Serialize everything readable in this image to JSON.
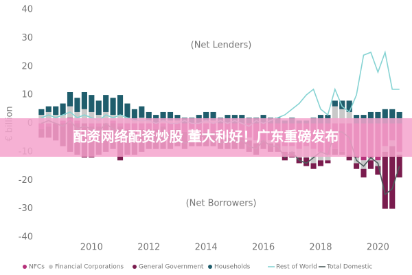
{
  "chart_data": {
    "type": "stacked-bar-line",
    "y_label": "€ billion",
    "annotations": [
      "(Net Lenders)",
      "(Net Borrowers)"
    ],
    "banner": "配资网络配资炒股 董大利好！广东重磅发布",
    "x": [
      2008.25,
      2008.5,
      2008.75,
      2009,
      2009.25,
      2009.5,
      2009.75,
      2010,
      2010.25,
      2010.5,
      2010.75,
      2011,
      2011.25,
      2011.5,
      2011.75,
      2012,
      2012.25,
      2012.5,
      2012.75,
      2013,
      2013.25,
      2013.5,
      2013.75,
      2014,
      2014.25,
      2014.5,
      2014.75,
      2015,
      2015.25,
      2015.5,
      2015.75,
      2016,
      2016.25,
      2016.5,
      2016.75,
      2017,
      2017.25,
      2017.5,
      2017.75,
      2018,
      2018.25,
      2018.5,
      2018.75,
      2019,
      2019.25,
      2019.5,
      2019.75,
      2020,
      2020.25,
      2020.5,
      2020.75
    ],
    "xlim": [
      2008.05,
      2020.95
    ],
    "xticks": [
      2010,
      2012,
      2014,
      2016,
      2018,
      2020
    ],
    "ylim": [
      -40,
      40
    ],
    "yticks": [
      -40,
      -30,
      -20,
      -10,
      0,
      10,
      20,
      30,
      40
    ],
    "series": [
      {
        "name": "NFCs",
        "kind": "bar",
        "color": "#b5317a",
        "values": [
          -2,
          -1,
          0,
          1,
          2,
          1,
          0,
          -1,
          -1,
          0,
          1,
          -1,
          -2,
          -3,
          -2,
          -2,
          -2,
          -1,
          -3,
          -2,
          -3,
          -2,
          -3,
          -3,
          -3,
          -4,
          -4,
          -4,
          -5,
          -5,
          -6,
          -6,
          -6,
          -7,
          -8,
          -8,
          -9,
          -8,
          -9,
          -10,
          -11,
          -9,
          -10,
          -11,
          -12,
          -13,
          -12,
          -13,
          -8,
          -6,
          -10
        ]
      },
      {
        "name": "Financial Corporations",
        "kind": "bar",
        "color": "#c9c9c9",
        "values": [
          3,
          4,
          3,
          2,
          4,
          3,
          5,
          4,
          3,
          4,
          2,
          3,
          2,
          1,
          2,
          1,
          0,
          1,
          1,
          1,
          0,
          -1,
          0,
          1,
          1,
          0,
          -1,
          0,
          0,
          -1,
          -1,
          0,
          -1,
          0,
          -2,
          -2,
          -3,
          -4,
          -5,
          -3,
          -2,
          6,
          5,
          4,
          -2,
          -3,
          -1,
          -2,
          -2,
          -2,
          -1
        ]
      },
      {
        "name": "General Government",
        "kind": "bar",
        "color": "#7a1c4e",
        "values": [
          -3,
          -4,
          -6,
          -8,
          -10,
          -11,
          -12,
          -11,
          -10,
          -10,
          -9,
          -12,
          -9,
          -8,
          -8,
          -7,
          -7,
          -8,
          -6,
          -6,
          -6,
          -5,
          -5,
          -5,
          -5,
          -5,
          -4,
          -5,
          -4,
          -4,
          -4,
          -3,
          -3,
          -3,
          -3,
          -2,
          -2,
          -3,
          -2,
          -2,
          -1,
          -2,
          -1,
          -2,
          -2,
          -3,
          -3,
          -3,
          -20,
          -22,
          -8
        ]
      },
      {
        "name": "Households",
        "kind": "bar",
        "color": "#1f5d6c",
        "values": [
          2,
          2,
          3,
          4,
          5,
          5,
          6,
          6,
          5,
          6,
          6,
          7,
          5,
          4,
          4,
          3,
          3,
          3,
          3,
          2,
          2,
          2,
          3,
          3,
          3,
          2,
          3,
          3,
          3,
          2,
          2,
          3,
          2,
          2,
          1,
          2,
          1,
          1,
          2,
          3,
          3,
          2,
          3,
          4,
          3,
          3,
          4,
          4,
          5,
          5,
          4
        ]
      },
      {
        "name": "Rest of World",
        "kind": "line",
        "color": "#86d3d3",
        "values": [
          2,
          3,
          2,
          3,
          4,
          2,
          3,
          2,
          1,
          3,
          2,
          3,
          2,
          1,
          1,
          1,
          0,
          1,
          0,
          0,
          1,
          0,
          0,
          1,
          0,
          1,
          0,
          1,
          0,
          -1,
          1,
          0,
          1,
          2,
          3,
          5,
          7,
          10,
          12,
          5,
          3,
          12,
          6,
          4,
          10,
          24,
          25,
          18,
          25,
          12,
          12
        ]
      },
      {
        "name": "Total Domestic",
        "kind": "line",
        "color": "#4c5c5c",
        "values": [
          0,
          1,
          0,
          -1,
          1,
          -2,
          -1,
          -2,
          -3,
          0,
          -2,
          -3,
          -4,
          -6,
          -4,
          -5,
          -6,
          -5,
          -5,
          -5,
          -7,
          -6,
          -5,
          -4,
          -4,
          -7,
          -6,
          -6,
          -6,
          -8,
          -9,
          -6,
          -8,
          -8,
          -12,
          -10,
          -13,
          -14,
          -12,
          -10,
          -11,
          -3,
          -3,
          -5,
          -13,
          -15,
          -12,
          -14,
          -25,
          -23,
          -15
        ]
      }
    ]
  }
}
